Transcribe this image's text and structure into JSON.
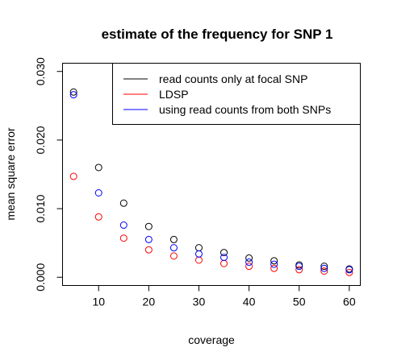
{
  "chart_data": {
    "type": "scatter",
    "title": "estimate of the frequency for SNP 1",
    "xlabel": "coverage",
    "ylabel": "mean square error",
    "xlim": [
      2.8,
      62.2
    ],
    "ylim": [
      -0.0012,
      0.0312
    ],
    "xticks": [
      10,
      20,
      30,
      40,
      50,
      60
    ],
    "xtick_labels": [
      "10",
      "20",
      "30",
      "40",
      "50",
      "60"
    ],
    "yticks": [
      0.0,
      0.01,
      0.02,
      0.03
    ],
    "ytick_labels": [
      "0.000",
      "0.010",
      "0.020",
      "0.030"
    ],
    "grid": false,
    "legend_position": "top-right",
    "marker": "open-circle",
    "x": [
      5,
      10,
      15,
      20,
      25,
      30,
      35,
      40,
      45,
      50,
      55,
      60
    ],
    "series": [
      {
        "name": "read counts only at focal SNP",
        "color": "#000000",
        "values": [
          0.027,
          0.016,
          0.0108,
          0.0074,
          0.0055,
          0.0043,
          0.0036,
          0.0028,
          0.0024,
          0.0018,
          0.0016,
          0.0012
        ]
      },
      {
        "name": "LDSP",
        "color": "#ff0000",
        "values": [
          0.0147,
          0.0088,
          0.0057,
          0.004,
          0.0031,
          0.0025,
          0.002,
          0.0016,
          0.0013,
          0.0011,
          0.0009,
          0.0007
        ]
      },
      {
        "name": "using read counts from both SNPs",
        "color": "#0000ff",
        "values": [
          0.0266,
          0.0123,
          0.0076,
          0.0055,
          0.0043,
          0.0034,
          0.0029,
          0.0022,
          0.0019,
          0.0016,
          0.0013,
          0.0011
        ]
      }
    ]
  }
}
